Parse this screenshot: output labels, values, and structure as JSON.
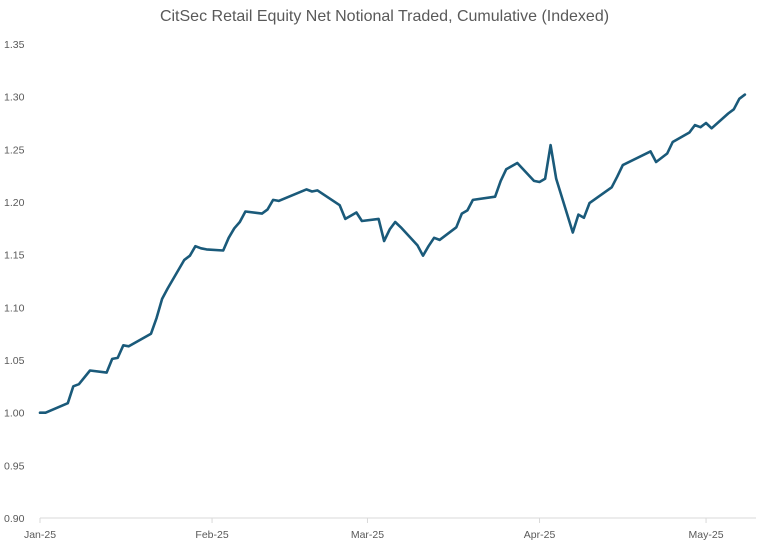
{
  "chart_data": {
    "type": "line",
    "title": "CitSec Retail Equity Net Notional Traded, Cumulative (Indexed)",
    "xlabel": "",
    "ylabel": "",
    "ylim": [
      0.9,
      1.35
    ],
    "yticks": [
      "0.90",
      "0.95",
      "1.00",
      "1.05",
      "1.10",
      "1.15",
      "1.20",
      "1.25",
      "1.30",
      "1.35"
    ],
    "xticks": [
      {
        "label": "Jan-25",
        "date": "2025-01-01"
      },
      {
        "label": "Feb-25",
        "date": "2025-02-01"
      },
      {
        "label": "Mar-25",
        "date": "2025-03-01"
      },
      {
        "label": "Apr-25",
        "date": "2025-04-01"
      },
      {
        "label": "May-25",
        "date": "2025-05-01"
      }
    ],
    "xlim": [
      "2025-01-01",
      "2025-05-10"
    ],
    "grid": false,
    "series_color": "#1a5a7a",
    "axis_color": "#d9d9d9",
    "text_color": "#595959",
    "series": [
      {
        "points": [
          [
            "2025-01-01",
            1.0
          ],
          [
            "2025-01-02",
            1.0
          ],
          [
            "2025-01-06",
            1.009
          ],
          [
            "2025-01-07",
            1.025
          ],
          [
            "2025-01-08",
            1.027
          ],
          [
            "2025-01-10",
            1.04
          ],
          [
            "2025-01-13",
            1.038
          ],
          [
            "2025-01-14",
            1.051
          ],
          [
            "2025-01-15",
            1.052
          ],
          [
            "2025-01-16",
            1.064
          ],
          [
            "2025-01-17",
            1.063
          ],
          [
            "2025-01-21",
            1.075
          ],
          [
            "2025-01-22",
            1.09
          ],
          [
            "2025-01-23",
            1.108
          ],
          [
            "2025-01-24",
            1.118
          ],
          [
            "2025-01-27",
            1.145
          ],
          [
            "2025-01-28",
            1.149
          ],
          [
            "2025-01-29",
            1.158
          ],
          [
            "2025-01-30",
            1.156
          ],
          [
            "2025-01-31",
            1.155
          ],
          [
            "2025-02-03",
            1.154
          ],
          [
            "2025-02-04",
            1.166
          ],
          [
            "2025-02-05",
            1.175
          ],
          [
            "2025-02-06",
            1.181
          ],
          [
            "2025-02-07",
            1.191
          ],
          [
            "2025-02-10",
            1.189
          ],
          [
            "2025-02-11",
            1.193
          ],
          [
            "2025-02-12",
            1.202
          ],
          [
            "2025-02-13",
            1.201
          ],
          [
            "2025-02-18",
            1.212
          ],
          [
            "2025-02-19",
            1.21
          ],
          [
            "2025-02-20",
            1.211
          ],
          [
            "2025-02-24",
            1.197
          ],
          [
            "2025-02-25",
            1.184
          ],
          [
            "2025-02-26",
            1.187
          ],
          [
            "2025-02-27",
            1.19
          ],
          [
            "2025-02-28",
            1.182
          ],
          [
            "2025-03-03",
            1.184
          ],
          [
            "2025-03-04",
            1.163
          ],
          [
            "2025-03-05",
            1.174
          ],
          [
            "2025-03-06",
            1.181
          ],
          [
            "2025-03-07",
            1.176
          ],
          [
            "2025-03-10",
            1.159
          ],
          [
            "2025-03-11",
            1.149
          ],
          [
            "2025-03-12",
            1.158
          ],
          [
            "2025-03-13",
            1.166
          ],
          [
            "2025-03-14",
            1.164
          ],
          [
            "2025-03-17",
            1.176
          ],
          [
            "2025-03-18",
            1.189
          ],
          [
            "2025-03-19",
            1.192
          ],
          [
            "2025-03-20",
            1.202
          ],
          [
            "2025-03-24",
            1.205
          ],
          [
            "2025-03-25",
            1.22
          ],
          [
            "2025-03-26",
            1.231
          ],
          [
            "2025-03-28",
            1.237
          ],
          [
            "2025-03-31",
            1.22
          ],
          [
            "2025-04-01",
            1.219
          ],
          [
            "2025-04-02",
            1.222
          ],
          [
            "2025-04-03",
            1.254
          ],
          [
            "2025-04-04",
            1.222
          ],
          [
            "2025-04-07",
            1.171
          ],
          [
            "2025-04-08",
            1.188
          ],
          [
            "2025-04-09",
            1.185
          ],
          [
            "2025-04-10",
            1.199
          ],
          [
            "2025-04-14",
            1.214
          ],
          [
            "2025-04-15",
            1.224
          ],
          [
            "2025-04-16",
            1.235
          ],
          [
            "2025-04-21",
            1.248
          ],
          [
            "2025-04-22",
            1.238
          ],
          [
            "2025-04-24",
            1.246
          ],
          [
            "2025-04-25",
            1.257
          ],
          [
            "2025-04-28",
            1.266
          ],
          [
            "2025-04-29",
            1.273
          ],
          [
            "2025-04-30",
            1.271
          ],
          [
            "2025-05-01",
            1.275
          ],
          [
            "2025-05-02",
            1.27
          ],
          [
            "2025-05-05",
            1.284
          ],
          [
            "2025-05-06",
            1.288
          ],
          [
            "2025-05-07",
            1.298
          ],
          [
            "2025-05-08",
            1.302
          ]
        ]
      }
    ]
  }
}
